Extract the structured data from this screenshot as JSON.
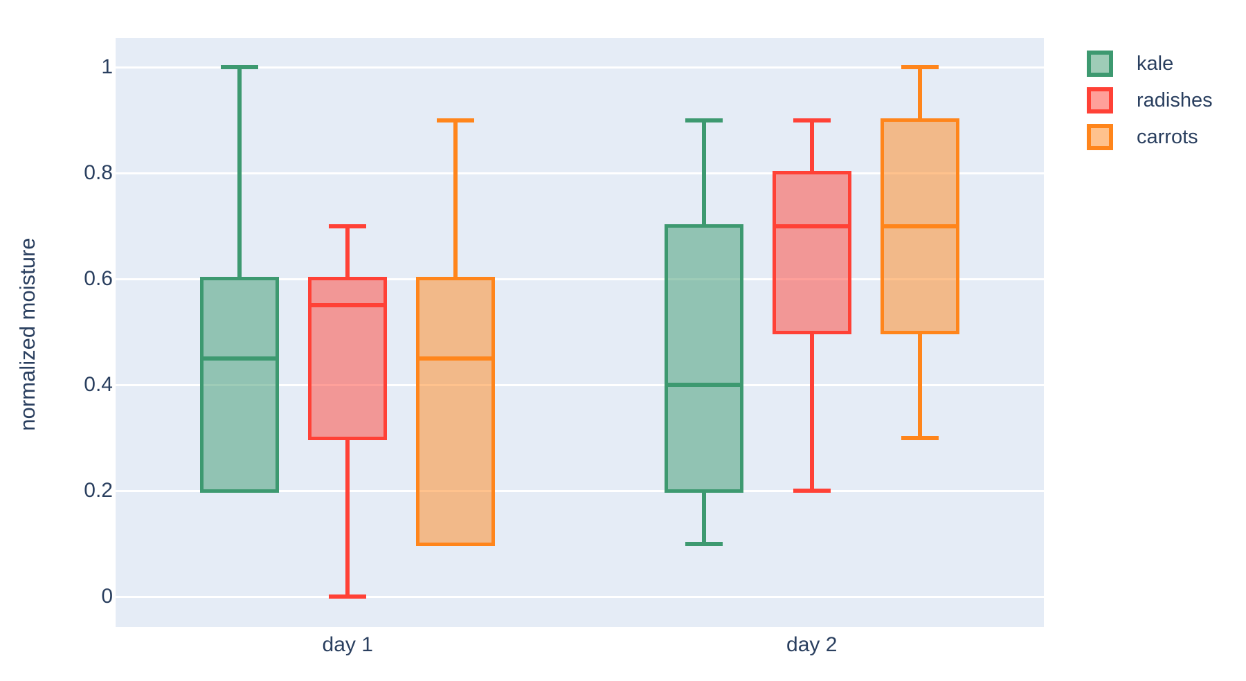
{
  "figure": {
    "yticklabels": [
      "0",
      "0.2",
      "0.4",
      "0.6",
      "0.8",
      "1"
    ]
  },
  "legend": {
    "items": [
      {
        "label": "kale",
        "color": "#3D9970"
      },
      {
        "label": "radishes",
        "color": "#FF4136"
      },
      {
        "label": "carrots",
        "color": "#FF851B"
      }
    ]
  },
  "chart_data": {
    "type": "box",
    "boxmode": "group",
    "title": "",
    "xlabel": "",
    "ylabel": "normalized moisture",
    "categories": [
      "day 1",
      "day 2"
    ],
    "yticks": [
      0,
      0.2,
      0.4,
      0.6,
      0.8,
      1
    ],
    "ylim": [
      -0.06,
      1.06
    ],
    "grid": true,
    "plot_bgcolor": "#E5ECF6",
    "gridcolor": "#ffffff",
    "text_color": "#2a3f5f",
    "legend_position": "outside-top-right",
    "series": [
      {
        "name": "kale",
        "color": "#3D9970",
        "boxes": [
          {
            "category": "day 1",
            "min": 0.2,
            "q1": 0.2,
            "median": 0.45,
            "q3": 0.6,
            "max": 1.0
          },
          {
            "category": "day 2",
            "min": 0.1,
            "q1": 0.2,
            "median": 0.4,
            "q3": 0.7,
            "max": 0.9
          }
        ]
      },
      {
        "name": "radishes",
        "color": "#FF4136",
        "boxes": [
          {
            "category": "day 1",
            "min": 0.0,
            "q1": 0.3,
            "median": 0.55,
            "q3": 0.6,
            "max": 0.7
          },
          {
            "category": "day 2",
            "min": 0.2,
            "q1": 0.5,
            "median": 0.7,
            "q3": 0.8,
            "max": 0.9
          }
        ]
      },
      {
        "name": "carrots",
        "color": "#FF851B",
        "boxes": [
          {
            "category": "day 1",
            "min": 0.1,
            "q1": 0.1,
            "median": 0.45,
            "q3": 0.6,
            "max": 0.9
          },
          {
            "category": "day 2",
            "min": 0.3,
            "q1": 0.5,
            "median": 0.7,
            "q3": 0.9,
            "max": 1.0
          }
        ]
      }
    ]
  }
}
